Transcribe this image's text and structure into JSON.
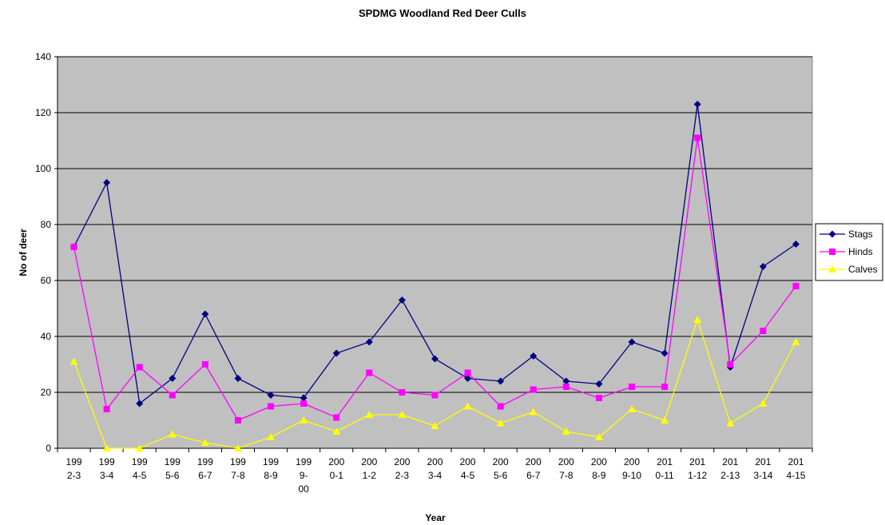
{
  "chart_data": {
    "type": "line",
    "title": "SPDMG Woodland Red Deer Culls",
    "xlabel": "Year",
    "ylabel": "No of deer",
    "ylim": [
      0,
      140
    ],
    "ytick_step": 20,
    "grid": true,
    "legend_position": "right",
    "plot_background": "#c0c0c0",
    "categories": [
      [
        "199",
        "2-3"
      ],
      [
        "199",
        "3-4"
      ],
      [
        "199",
        "4-5"
      ],
      [
        "199",
        "5-6"
      ],
      [
        "199",
        "6-7"
      ],
      [
        "199",
        "7-8"
      ],
      [
        "199",
        "8-9"
      ],
      [
        "199",
        "9-",
        "00"
      ],
      [
        "200",
        "0-1"
      ],
      [
        "200",
        "1-2"
      ],
      [
        "200",
        "2-3"
      ],
      [
        "200",
        "3-4"
      ],
      [
        "200",
        "4-5"
      ],
      [
        "200",
        "5-6"
      ],
      [
        "200",
        "6-7"
      ],
      [
        "200",
        "7-8"
      ],
      [
        "200",
        "8-9"
      ],
      [
        "200",
        "9-10"
      ],
      [
        "201",
        "0-11"
      ],
      [
        "201",
        "1-12"
      ],
      [
        "201",
        "2-13"
      ],
      [
        "201",
        "3-14"
      ],
      [
        "201",
        "4-15"
      ]
    ],
    "series": [
      {
        "name": "Stags",
        "color": "#000080",
        "marker": "diamond",
        "values": [
          72,
          95,
          16,
          25,
          48,
          25,
          19,
          18,
          34,
          38,
          53,
          32,
          25,
          24,
          33,
          24,
          23,
          38,
          34,
          123,
          29,
          65,
          73
        ]
      },
      {
        "name": "Hinds",
        "color": "#ff00ff",
        "marker": "square",
        "values": [
          72,
          14,
          29,
          19,
          30,
          10,
          15,
          16,
          11,
          27,
          20,
          19,
          27,
          15,
          21,
          22,
          18,
          22,
          22,
          111,
          30,
          42,
          58
        ]
      },
      {
        "name": "Calves",
        "color": "#ffff00",
        "marker": "triangle",
        "values": [
          31,
          0,
          0,
          5,
          2,
          0,
          4,
          10,
          6,
          12,
          12,
          8,
          15,
          9,
          13,
          6,
          4,
          14,
          10,
          46,
          9,
          16,
          38
        ]
      }
    ]
  }
}
